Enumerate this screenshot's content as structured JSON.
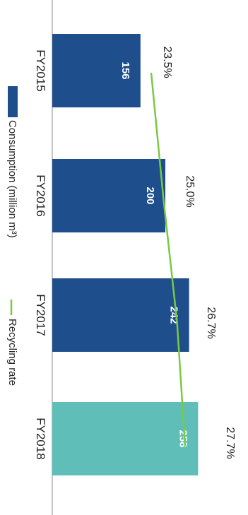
{
  "chart_data": {
    "type": "bar",
    "orientation": "rotated-90-clockwise",
    "categories": [
      "FY2015",
      "FY2016",
      "FY2017",
      "FY2018"
    ],
    "series": [
      {
        "name": "Consumption (million m³)",
        "values": [
          156,
          200,
          242,
          258
        ],
        "colors": [
          "#1f4e8c",
          "#1f4e8c",
          "#1f4e8c",
          "#5fbfb8"
        ],
        "data_labels": [
          "156",
          "200",
          "242",
          "258"
        ]
      },
      {
        "name": "Recycling rate",
        "values": [
          23.5,
          25.0,
          26.7,
          27.7
        ],
        "color": "#7ac943",
        "data_labels": [
          "23.5%",
          "25.0%",
          "26.7%",
          "27.7%"
        ]
      }
    ],
    "legend": {
      "position": "left",
      "items": [
        {
          "label": "Consumption (million m³)",
          "marker": "square",
          "color": "#1f4e8c"
        },
        {
          "label": "Recycling rate",
          "marker": "line",
          "color": "#7ac943"
        }
      ]
    },
    "grid": false,
    "axis_line_color": "#b0b0b0"
  }
}
